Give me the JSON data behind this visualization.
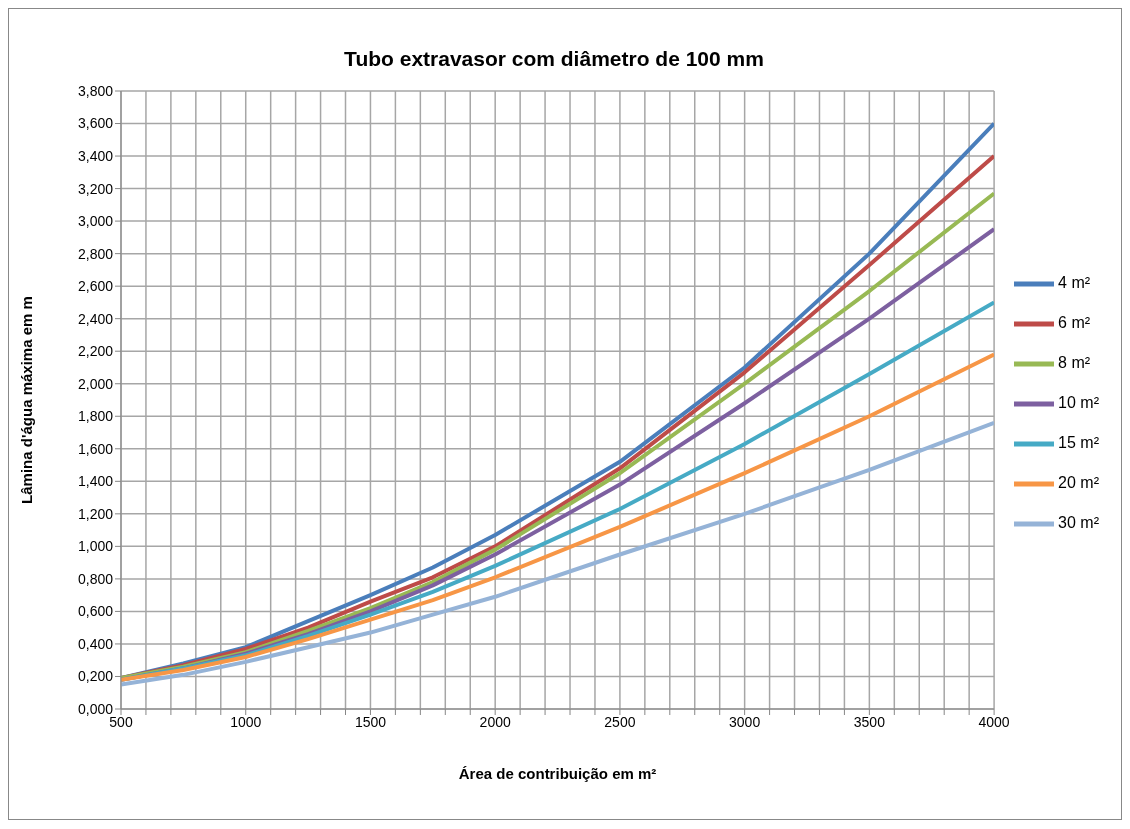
{
  "chart_data": {
    "type": "line",
    "title": "Tubo extravasor com diâmetro de 100 mm",
    "xlabel": "Área de contribuição  em m²",
    "ylabel": "Lâmina d'água  máxima em m",
    "x": [
      500,
      750,
      1000,
      1250,
      1500,
      1750,
      2000,
      2500,
      3000,
      3500,
      4000
    ],
    "series": [
      {
        "name": "4 m²",
        "color": "#4a7ebb",
        "values": [
          0.19,
          0.28,
          0.38,
          0.54,
          0.7,
          0.87,
          1.07,
          1.52,
          2.1,
          2.8,
          3.6
        ]
      },
      {
        "name": "6 m²",
        "color": "#be4b48",
        "values": [
          0.19,
          0.27,
          0.37,
          0.5,
          0.66,
          0.81,
          1.0,
          1.48,
          2.07,
          2.73,
          3.4
        ]
      },
      {
        "name": "8 m²",
        "color": "#98b954",
        "values": [
          0.19,
          0.26,
          0.35,
          0.48,
          0.62,
          0.78,
          0.98,
          1.45,
          2.0,
          2.57,
          3.17
        ]
      },
      {
        "name": "10 m²",
        "color": "#7d60a0",
        "values": [
          0.18,
          0.25,
          0.34,
          0.46,
          0.6,
          0.76,
          0.95,
          1.38,
          1.88,
          2.4,
          2.95
        ]
      },
      {
        "name": "15 m²",
        "color": "#46aac5",
        "values": [
          0.18,
          0.25,
          0.33,
          0.45,
          0.58,
          0.72,
          0.88,
          1.23,
          1.63,
          2.06,
          2.5
        ]
      },
      {
        "name": "20 m²",
        "color": "#f79646",
        "values": [
          0.18,
          0.24,
          0.32,
          0.43,
          0.55,
          0.67,
          0.81,
          1.12,
          1.45,
          1.8,
          2.18
        ]
      },
      {
        "name": "30 m²",
        "color": "#95b3d7",
        "values": [
          0.15,
          0.21,
          0.29,
          0.38,
          0.47,
          0.58,
          0.69,
          0.95,
          1.2,
          1.47,
          1.76
        ]
      }
    ],
    "xlim": [
      500,
      4000
    ],
    "xticks": [
      500,
      {
        "value": 600,
        "label": null
      },
      {
        "value": 700,
        "label": null
      },
      {
        "value": 800,
        "label": null
      },
      {
        "value": 900,
        "label": null
      },
      1000,
      {
        "value": 1100,
        "label": null
      },
      {
        "value": 1200,
        "label": null
      },
      {
        "value": 1300,
        "label": null
      },
      {
        "value": 1400,
        "label": null
      },
      1500,
      {
        "value": 1600,
        "label": null
      },
      {
        "value": 1700,
        "label": null
      },
      {
        "value": 1800,
        "label": null
      },
      {
        "value": 1900,
        "label": null
      },
      2000,
      {
        "value": 2100,
        "label": null
      },
      {
        "value": 2200,
        "label": null
      },
      {
        "value": 2300,
        "label": null
      },
      {
        "value": 2400,
        "label": null
      },
      2500,
      {
        "value": 2600,
        "label": null
      },
      {
        "value": 2700,
        "label": null
      },
      {
        "value": 2800,
        "label": null
      },
      {
        "value": 2900,
        "label": null
      },
      3000,
      {
        "value": 3100,
        "label": null
      },
      {
        "value": 3200,
        "label": null
      },
      {
        "value": 3300,
        "label": null
      },
      {
        "value": 3400,
        "label": null
      },
      3500,
      {
        "value": 3600,
        "label": null
      },
      {
        "value": 3700,
        "label": null
      },
      {
        "value": 3800,
        "label": null
      },
      {
        "value": 3900,
        "label": null
      },
      4000
    ],
    "ylim": [
      0,
      3.8
    ],
    "yticks": [
      {
        "value": 0,
        "label": "0,000"
      },
      {
        "value": 0.2,
        "label": "0,200"
      },
      {
        "value": 0.4,
        "label": "0,400"
      },
      {
        "value": 0.6,
        "label": "0,600"
      },
      {
        "value": 0.8,
        "label": "0,800"
      },
      {
        "value": 1.0,
        "label": "1,000"
      },
      {
        "value": 1.2,
        "label": "1,200"
      },
      {
        "value": 1.4,
        "label": "1,400"
      },
      {
        "value": 1.6,
        "label": "1,600"
      },
      {
        "value": 1.8,
        "label": "1,800"
      },
      {
        "value": 2.0,
        "label": "2,000"
      },
      {
        "value": 2.2,
        "label": "2,200"
      },
      {
        "value": 2.4,
        "label": "2,400"
      },
      {
        "value": 2.6,
        "label": "2,600"
      },
      {
        "value": 2.8,
        "label": "2,800"
      },
      {
        "value": 3.0,
        "label": "3,000"
      },
      {
        "value": 3.2,
        "label": "3,200"
      },
      {
        "value": 3.4,
        "label": "3,400"
      },
      {
        "value": 3.6,
        "label": "3,600"
      },
      {
        "value": 3.8,
        "label": "3,800"
      }
    ],
    "grid": true,
    "legend": "right",
    "marker": "none",
    "line_style": "solid"
  }
}
